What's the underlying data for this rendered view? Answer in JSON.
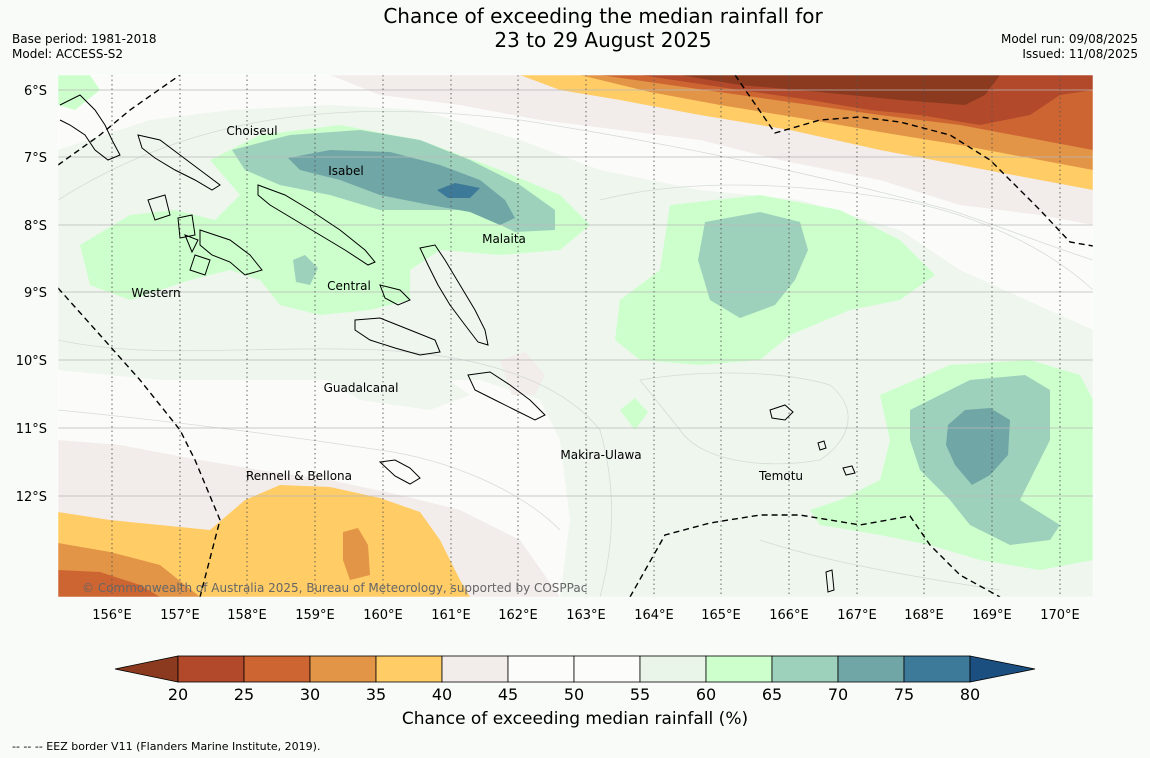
{
  "title": {
    "line1": "Chance of exceeding the median rainfall for",
    "line2": "23 to 29 August 2025"
  },
  "meta": {
    "base_period": "Base period: 1981-2018",
    "model": "Model: ACCESS-S2",
    "model_run": "Model run: 09/08/2025",
    "issued": "Issued: 11/08/2025"
  },
  "map": {
    "lat_labels": [
      "6°S",
      "7°S",
      "8°S",
      "9°S",
      "10°S",
      "11°S",
      "12°S"
    ],
    "lon_labels": [
      "156°E",
      "157°E",
      "158°E",
      "159°E",
      "160°E",
      "161°E",
      "162°E",
      "163°E",
      "164°E",
      "165°E",
      "166°E",
      "167°E",
      "168°E",
      "169°E",
      "170°E"
    ],
    "regions": [
      "Choiseul",
      "Isabel",
      "Malaita",
      "Western",
      "Central",
      "Guadalcanal",
      "Makira-Ulawa",
      "Rennell & Bellona",
      "Temotu"
    ],
    "copyright": "© Commonwealth of Australia 2025, Bureau of Meteorology, supported by COSPPac"
  },
  "colorbar": {
    "ticks": [
      "20",
      "25",
      "30",
      "35",
      "40",
      "45",
      "50",
      "55",
      "60",
      "65",
      "70",
      "75",
      "80"
    ],
    "colors": [
      "#8b3a1f",
      "#b1492a",
      "#cd6532",
      "#e29447",
      "#ffcc66",
      "#f2ecea",
      "#fcfcfa",
      "#fcfcfa",
      "#eaf5ea",
      "#ccffcc",
      "#9dd1bb",
      "#70a6a6",
      "#3d7a99",
      "#1a4f80"
    ],
    "label": "Chance of exceeding median rainfall (%)"
  },
  "footnote": "--  --  -- EEZ border V11 (Flanders Marine Institute, 2019)."
}
